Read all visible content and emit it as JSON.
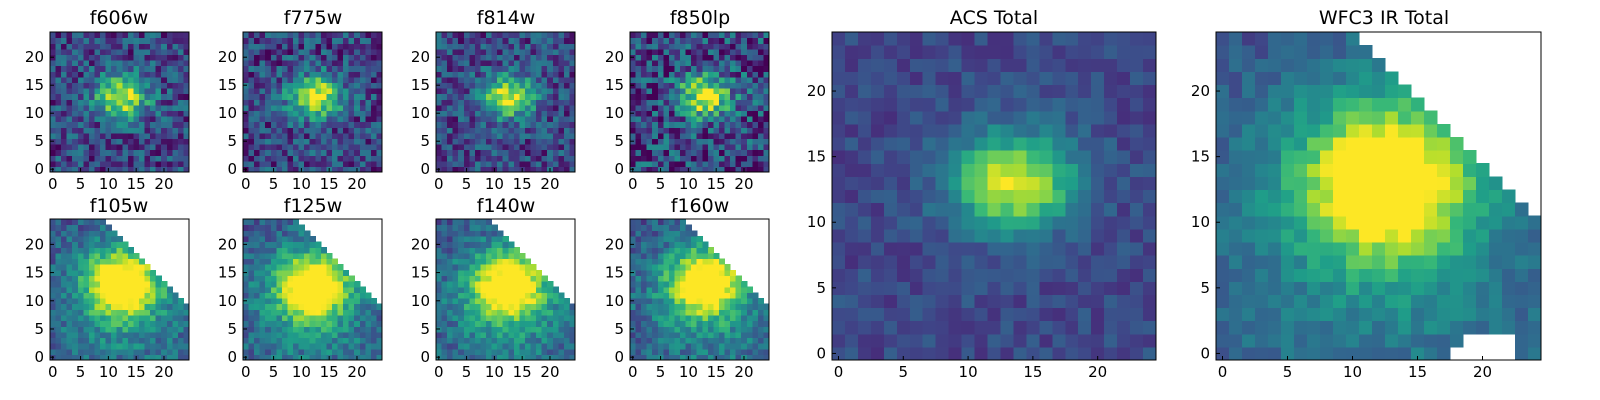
{
  "chart_data": [
    {
      "type": "heatmap",
      "title": "f606w",
      "band": "acs",
      "xlim": [
        0,
        24
      ],
      "ylim": [
        0,
        24
      ],
      "xticks": [
        0,
        5,
        10,
        15,
        20
      ],
      "yticks": [
        0,
        5,
        10,
        15,
        20
      ],
      "colormap": "viridis",
      "peak": [
        12.5,
        13
      ],
      "noise": 0.45,
      "mask": "none"
    },
    {
      "type": "heatmap",
      "title": "f775w",
      "band": "acs",
      "xlim": [
        0,
        24
      ],
      "ylim": [
        0,
        24
      ],
      "xticks": [
        0,
        5,
        10,
        15,
        20
      ],
      "yticks": [
        0,
        5,
        10,
        15,
        20
      ],
      "colormap": "viridis",
      "peak": [
        12.5,
        13
      ],
      "noise": 0.45,
      "mask": "none"
    },
    {
      "type": "heatmap",
      "title": "f814w",
      "band": "acs",
      "xlim": [
        0,
        24
      ],
      "ylim": [
        0,
        24
      ],
      "xticks": [
        0,
        5,
        10,
        15,
        20
      ],
      "yticks": [
        0,
        5,
        10,
        15,
        20
      ],
      "colormap": "viridis",
      "peak": [
        12.5,
        13
      ],
      "noise": 0.42,
      "mask": "none"
    },
    {
      "type": "heatmap",
      "title": "f850lp",
      "band": "acs",
      "xlim": [
        0,
        24
      ],
      "ylim": [
        0,
        24
      ],
      "xticks": [
        0,
        5,
        10,
        15,
        20
      ],
      "yticks": [
        0,
        5,
        10,
        15,
        20
      ],
      "colormap": "viridis",
      "peak": [
        13,
        13
      ],
      "noise": 0.55,
      "mask": "none"
    },
    {
      "type": "heatmap",
      "title": "f105w",
      "band": "ir",
      "xlim": [
        0,
        24
      ],
      "ylim": [
        0,
        24
      ],
      "xticks": [
        0,
        5,
        10,
        15,
        20
      ],
      "yticks": [
        0,
        5,
        10,
        15,
        20
      ],
      "colormap": "viridis",
      "peak": [
        12.5,
        13
      ],
      "noise": 0.3,
      "mask": "diagonal"
    },
    {
      "type": "heatmap",
      "title": "f125w",
      "band": "ir",
      "xlim": [
        0,
        24
      ],
      "ylim": [
        0,
        24
      ],
      "xticks": [
        0,
        5,
        10,
        15,
        20
      ],
      "yticks": [
        0,
        5,
        10,
        15,
        20
      ],
      "colormap": "viridis",
      "peak": [
        12,
        12.5
      ],
      "noise": 0.3,
      "mask": "diagonal"
    },
    {
      "type": "heatmap",
      "title": "f140w",
      "band": "ir",
      "xlim": [
        0,
        24
      ],
      "ylim": [
        0,
        24
      ],
      "xticks": [
        0,
        5,
        10,
        15,
        20
      ],
      "yticks": [
        0,
        5,
        10,
        15,
        20
      ],
      "colormap": "viridis",
      "peak": [
        12.5,
        12.5
      ],
      "noise": 0.3,
      "mask": "diagonal"
    },
    {
      "type": "heatmap",
      "title": "f160w",
      "band": "ir",
      "xlim": [
        0,
        24
      ],
      "ylim": [
        0,
        24
      ],
      "xticks": [
        0,
        5,
        10,
        15,
        20
      ],
      "yticks": [
        0,
        5,
        10,
        15,
        20
      ],
      "colormap": "viridis",
      "peak": [
        13,
        13
      ],
      "noise": 0.3,
      "mask": "diagonal"
    },
    {
      "type": "heatmap",
      "title": "ACS Total",
      "band": "acs",
      "xlim": [
        0,
        24
      ],
      "ylim": [
        0,
        24
      ],
      "xticks": [
        0,
        5,
        10,
        15,
        20
      ],
      "yticks": [
        0,
        5,
        10,
        15,
        20
      ],
      "colormap": "viridis",
      "peak": [
        13.5,
        13
      ],
      "noise": 0.18,
      "mask": "none"
    },
    {
      "type": "heatmap",
      "title": "WFC3 IR Total",
      "band": "ir",
      "xlim": [
        0,
        24
      ],
      "ylim": [
        0,
        24
      ],
      "xticks": [
        0,
        5,
        10,
        15,
        20
      ],
      "yticks": [
        0,
        5,
        10,
        15,
        20
      ],
      "colormap": "viridis",
      "peak": [
        12.5,
        13
      ],
      "noise": 0.18,
      "mask": "diagonal-holes"
    }
  ]
}
